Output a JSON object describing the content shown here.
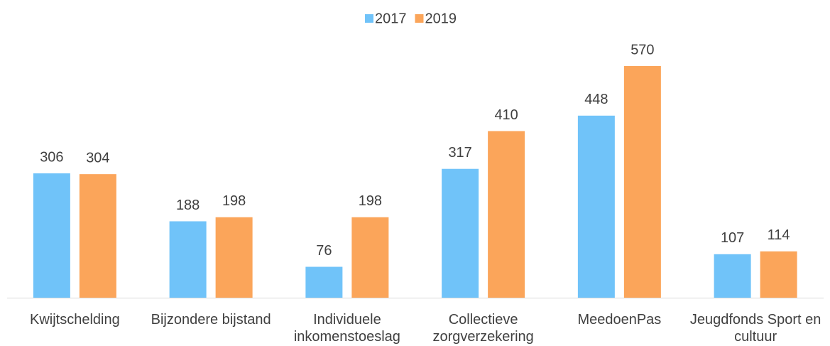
{
  "chart_data": {
    "type": "bar",
    "categories": [
      "Kwijtschelding",
      "Bijzondere bijstand",
      "Individuele inkomenstoeslag",
      "Collectieve zorgverzekering",
      "MeedoenPas",
      "Jeugdfonds Sport en cultuur"
    ],
    "series": [
      {
        "name": "2017",
        "color": "#70c3f9",
        "values": [
          306,
          188,
          76,
          317,
          448,
          107
        ]
      },
      {
        "name": "2019",
        "color": "#fba55a",
        "values": [
          304,
          198,
          198,
          410,
          570,
          114
        ]
      }
    ],
    "legend": "top"
  }
}
